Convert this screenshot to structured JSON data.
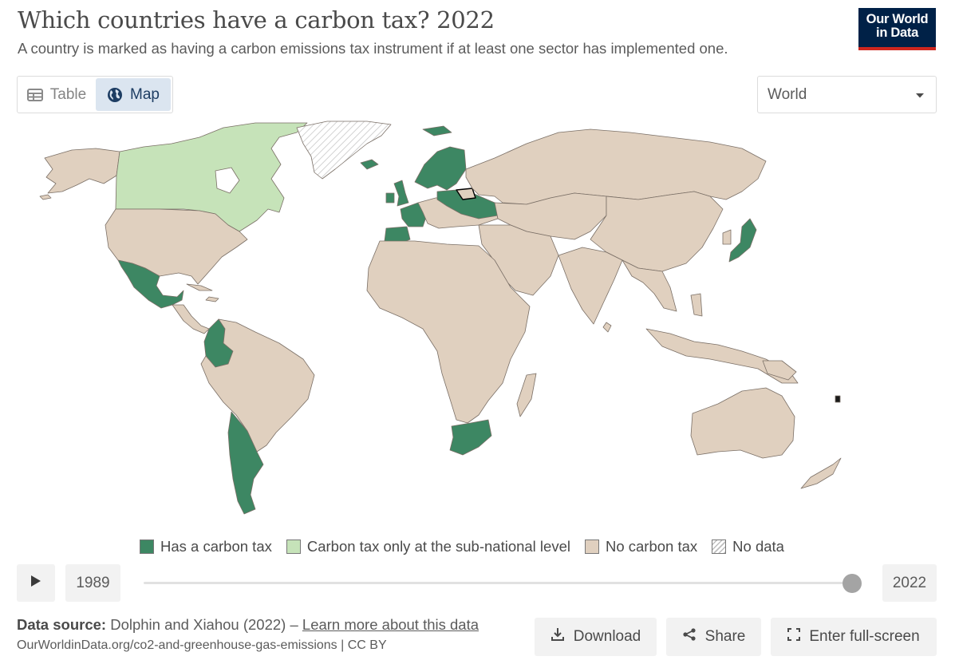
{
  "header": {
    "title": "Which countries have a carbon tax? 2022",
    "subtitle": "A country is marked as having a carbon emissions tax instrument if at least one sector has implemented one."
  },
  "logo": {
    "line1": "Our World",
    "line2": "in Data"
  },
  "tabs": [
    {
      "label": "Table",
      "icon": "table-icon",
      "active": false
    },
    {
      "label": "Map",
      "icon": "globe-icon",
      "active": true
    }
  ],
  "region_select": {
    "value": "World",
    "icon": "caret-down-icon"
  },
  "legend": [
    {
      "label": "Has a carbon tax",
      "color": "#3d8763"
    },
    {
      "label": "Carbon tax only at the sub-national level",
      "color": "#c6e3b9"
    },
    {
      "label": "No carbon tax",
      "color": "#e0d0bf"
    },
    {
      "label": "No data",
      "color": "hatched"
    }
  ],
  "timeline": {
    "start_year": "1989",
    "end_year": "2022",
    "position": 1.0
  },
  "footer": {
    "source_label": "Data source:",
    "source_text": "Dolphin and Xiahou (2022) –",
    "learn_more": "Learn more about this data",
    "url": "OurWorldinData.org/co2-and-greenhouse-gas-emissions | CC BY"
  },
  "actions": {
    "download": "Download",
    "share": "Share",
    "fullscreen": "Enter full-screen"
  },
  "colors": {
    "has_tax": "#3d8763",
    "subnational": "#c6e3b9",
    "no_tax": "#e0d0bf",
    "border": "#7a6f66"
  },
  "map": {
    "countries": [
      {
        "name": "Canada",
        "status": "subnational"
      },
      {
        "name": "United States",
        "status": "no_tax"
      },
      {
        "name": "Mexico",
        "status": "has_tax"
      },
      {
        "name": "Colombia",
        "status": "has_tax"
      },
      {
        "name": "Argentina",
        "status": "has_tax"
      },
      {
        "name": "Chile",
        "status": "has_tax"
      },
      {
        "name": "South Africa",
        "status": "has_tax"
      },
      {
        "name": "Japan",
        "status": "has_tax"
      },
      {
        "name": "Norway",
        "status": "has_tax"
      },
      {
        "name": "Sweden",
        "status": "has_tax"
      },
      {
        "name": "Finland",
        "status": "has_tax"
      },
      {
        "name": "Iceland",
        "status": "has_tax"
      },
      {
        "name": "United Kingdom",
        "status": "has_tax"
      },
      {
        "name": "Ireland",
        "status": "has_tax"
      },
      {
        "name": "France",
        "status": "has_tax"
      },
      {
        "name": "Portugal",
        "status": "has_tax"
      },
      {
        "name": "Spain",
        "status": "has_tax"
      },
      {
        "name": "Poland",
        "status": "has_tax"
      },
      {
        "name": "Ukraine",
        "status": "has_tax"
      },
      {
        "name": "Greenland",
        "status": "no_data"
      },
      {
        "name": "Russia",
        "status": "no_tax"
      },
      {
        "name": "China",
        "status": "no_tax"
      },
      {
        "name": "Australia",
        "status": "no_tax"
      }
    ]
  }
}
